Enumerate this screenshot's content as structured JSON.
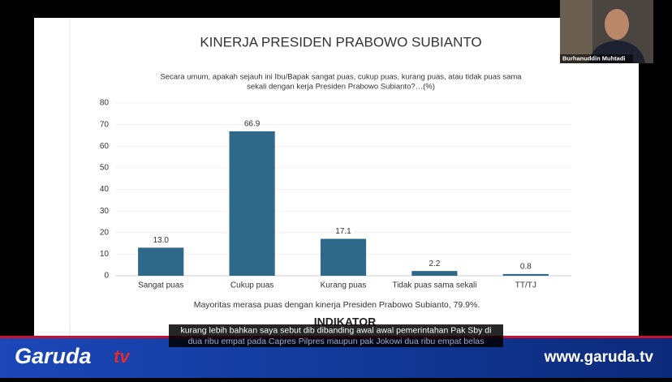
{
  "chart_data": {
    "type": "bar",
    "title": "KINERJA PRESIDEN PRABOWO SUBIANTO",
    "subtitle": [
      "Secara umum, apakah sejauh ini Ibu/Bapak sangat puas, cukup puas, kurang puas, atau tidak puas sama",
      "sekali dengan kerja Presiden Prabowo Subianto?…(%)"
    ],
    "categories": [
      "Sangat puas",
      "Cukup puas",
      "Kurang puas",
      "Tidak puas sama sekali",
      "TT/TJ"
    ],
    "values": [
      13.0,
      66.9,
      17.1,
      2.2,
      0.8
    ],
    "value_labels": [
      "13.0",
      "66.9",
      "17.1",
      "2.2",
      "0.8"
    ],
    "color": "#2f6889",
    "ylim": [
      0,
      80
    ],
    "yticks": [
      0,
      10,
      20,
      30,
      40,
      50,
      60,
      70,
      80
    ],
    "grid": true,
    "annotation": "Mayoritas merasa puas dengan kinerja Presiden Prabowo Subianto, 79.9%.",
    "source_logo": "INDIKATOR"
  },
  "overlay": {
    "speaker": "Burhanuddin Muhtadi",
    "captions": [
      "kurang lebih bahkan saya sebut dib dibanding awal awal pemerintahan Pak Sby di",
      "dua ribu empat pada Capres Pilpres maupun pak Jokowi dua ribu empat belas"
    ],
    "channel_logo": [
      "Garuda",
      "tv"
    ],
    "website": "www.garuda.tv"
  }
}
